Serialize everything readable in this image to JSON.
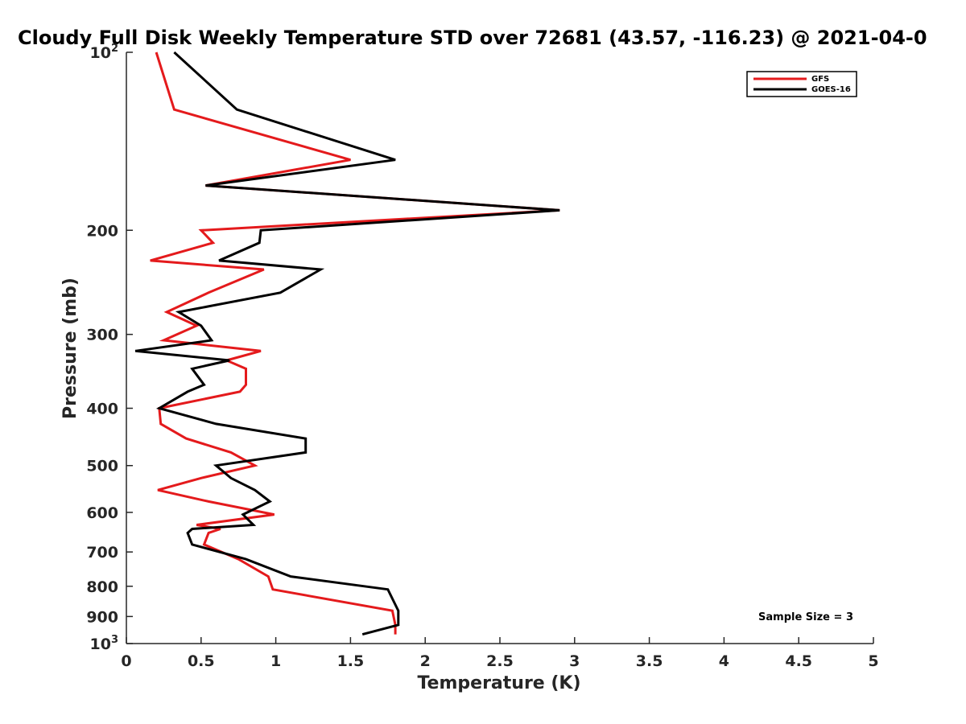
{
  "chart_data": {
    "type": "line",
    "title": "Cloudy Full Disk Weekly Temperature STD over 72681 (43.57, -116.23) @ 2021-04-0",
    "xlabel": "Temperature (K)",
    "ylabel": "Pressure (mb)",
    "xlim": [
      0,
      5
    ],
    "ylim": [
      1000,
      100
    ],
    "yscale": "log",
    "x_ticks": [
      "0",
      "0.5",
      "1",
      "1.5",
      "2",
      "2.5",
      "3",
      "3.5",
      "4",
      "4.5",
      "5"
    ],
    "y_ticks": [
      {
        "value": 100,
        "base": "10",
        "exp": "2"
      },
      {
        "value": 200,
        "label": "200"
      },
      {
        "value": 300,
        "label": "300"
      },
      {
        "value": 400,
        "label": "400"
      },
      {
        "value": 500,
        "label": "500"
      },
      {
        "value": 600,
        "label": "600"
      },
      {
        "value": 700,
        "label": "700"
      },
      {
        "value": 800,
        "label": "800"
      },
      {
        "value": 900,
        "label": "900"
      },
      {
        "value": 1000,
        "base": "10",
        "exp": "3"
      }
    ],
    "grid": false,
    "legend_position": "top-right",
    "annotation": "Sample Size = 3",
    "series": [
      {
        "name": "GFS",
        "color": "#e41a1c",
        "points": [
          [
            0.2,
            100
          ],
          [
            0.32,
            125
          ],
          [
            1.5,
            152
          ],
          [
            0.53,
            168
          ],
          [
            2.9,
            185
          ],
          [
            0.5,
            200
          ],
          [
            0.58,
            210
          ],
          [
            0.16,
            225
          ],
          [
            0.92,
            233
          ],
          [
            0.55,
            255
          ],
          [
            0.27,
            275
          ],
          [
            0.47,
            290
          ],
          [
            0.25,
            307
          ],
          [
            0.9,
            320
          ],
          [
            0.67,
            332
          ],
          [
            0.8,
            343
          ],
          [
            0.8,
            365
          ],
          [
            0.76,
            375
          ],
          [
            0.22,
            400
          ],
          [
            0.23,
            425
          ],
          [
            0.4,
            450
          ],
          [
            0.7,
            475
          ],
          [
            0.86,
            500
          ],
          [
            0.5,
            525
          ],
          [
            0.21,
            550
          ],
          [
            0.55,
            575
          ],
          [
            0.99,
            605
          ],
          [
            0.47,
            630
          ],
          [
            0.63,
            640
          ],
          [
            0.55,
            650
          ],
          [
            0.52,
            680
          ],
          [
            0.75,
            720
          ],
          [
            0.95,
            770
          ],
          [
            0.98,
            810
          ],
          [
            1.78,
            880
          ],
          [
            1.8,
            930
          ],
          [
            1.8,
            965
          ]
        ]
      },
      {
        "name": "GOES-16",
        "color": "#000000",
        "points": [
          [
            0.32,
            100
          ],
          [
            0.74,
            125
          ],
          [
            1.8,
            152
          ],
          [
            0.53,
            168
          ],
          [
            2.9,
            185
          ],
          [
            0.9,
            200
          ],
          [
            0.89,
            210
          ],
          [
            0.62,
            225
          ],
          [
            1.3,
            233
          ],
          [
            1.03,
            255
          ],
          [
            0.35,
            275
          ],
          [
            0.5,
            290
          ],
          [
            0.57,
            307
          ],
          [
            0.06,
            320
          ],
          [
            0.69,
            332
          ],
          [
            0.44,
            343
          ],
          [
            0.52,
            365
          ],
          [
            0.41,
            375
          ],
          [
            0.22,
            400
          ],
          [
            0.6,
            425
          ],
          [
            1.2,
            450
          ],
          [
            1.2,
            475
          ],
          [
            0.6,
            500
          ],
          [
            0.7,
            525
          ],
          [
            0.86,
            550
          ],
          [
            0.96,
            575
          ],
          [
            0.78,
            605
          ],
          [
            0.85,
            630
          ],
          [
            0.44,
            640
          ],
          [
            0.41,
            650
          ],
          [
            0.44,
            680
          ],
          [
            0.8,
            720
          ],
          [
            1.1,
            770
          ],
          [
            1.75,
            810
          ],
          [
            1.82,
            880
          ],
          [
            1.82,
            930
          ],
          [
            1.58,
            965
          ]
        ]
      }
    ]
  }
}
